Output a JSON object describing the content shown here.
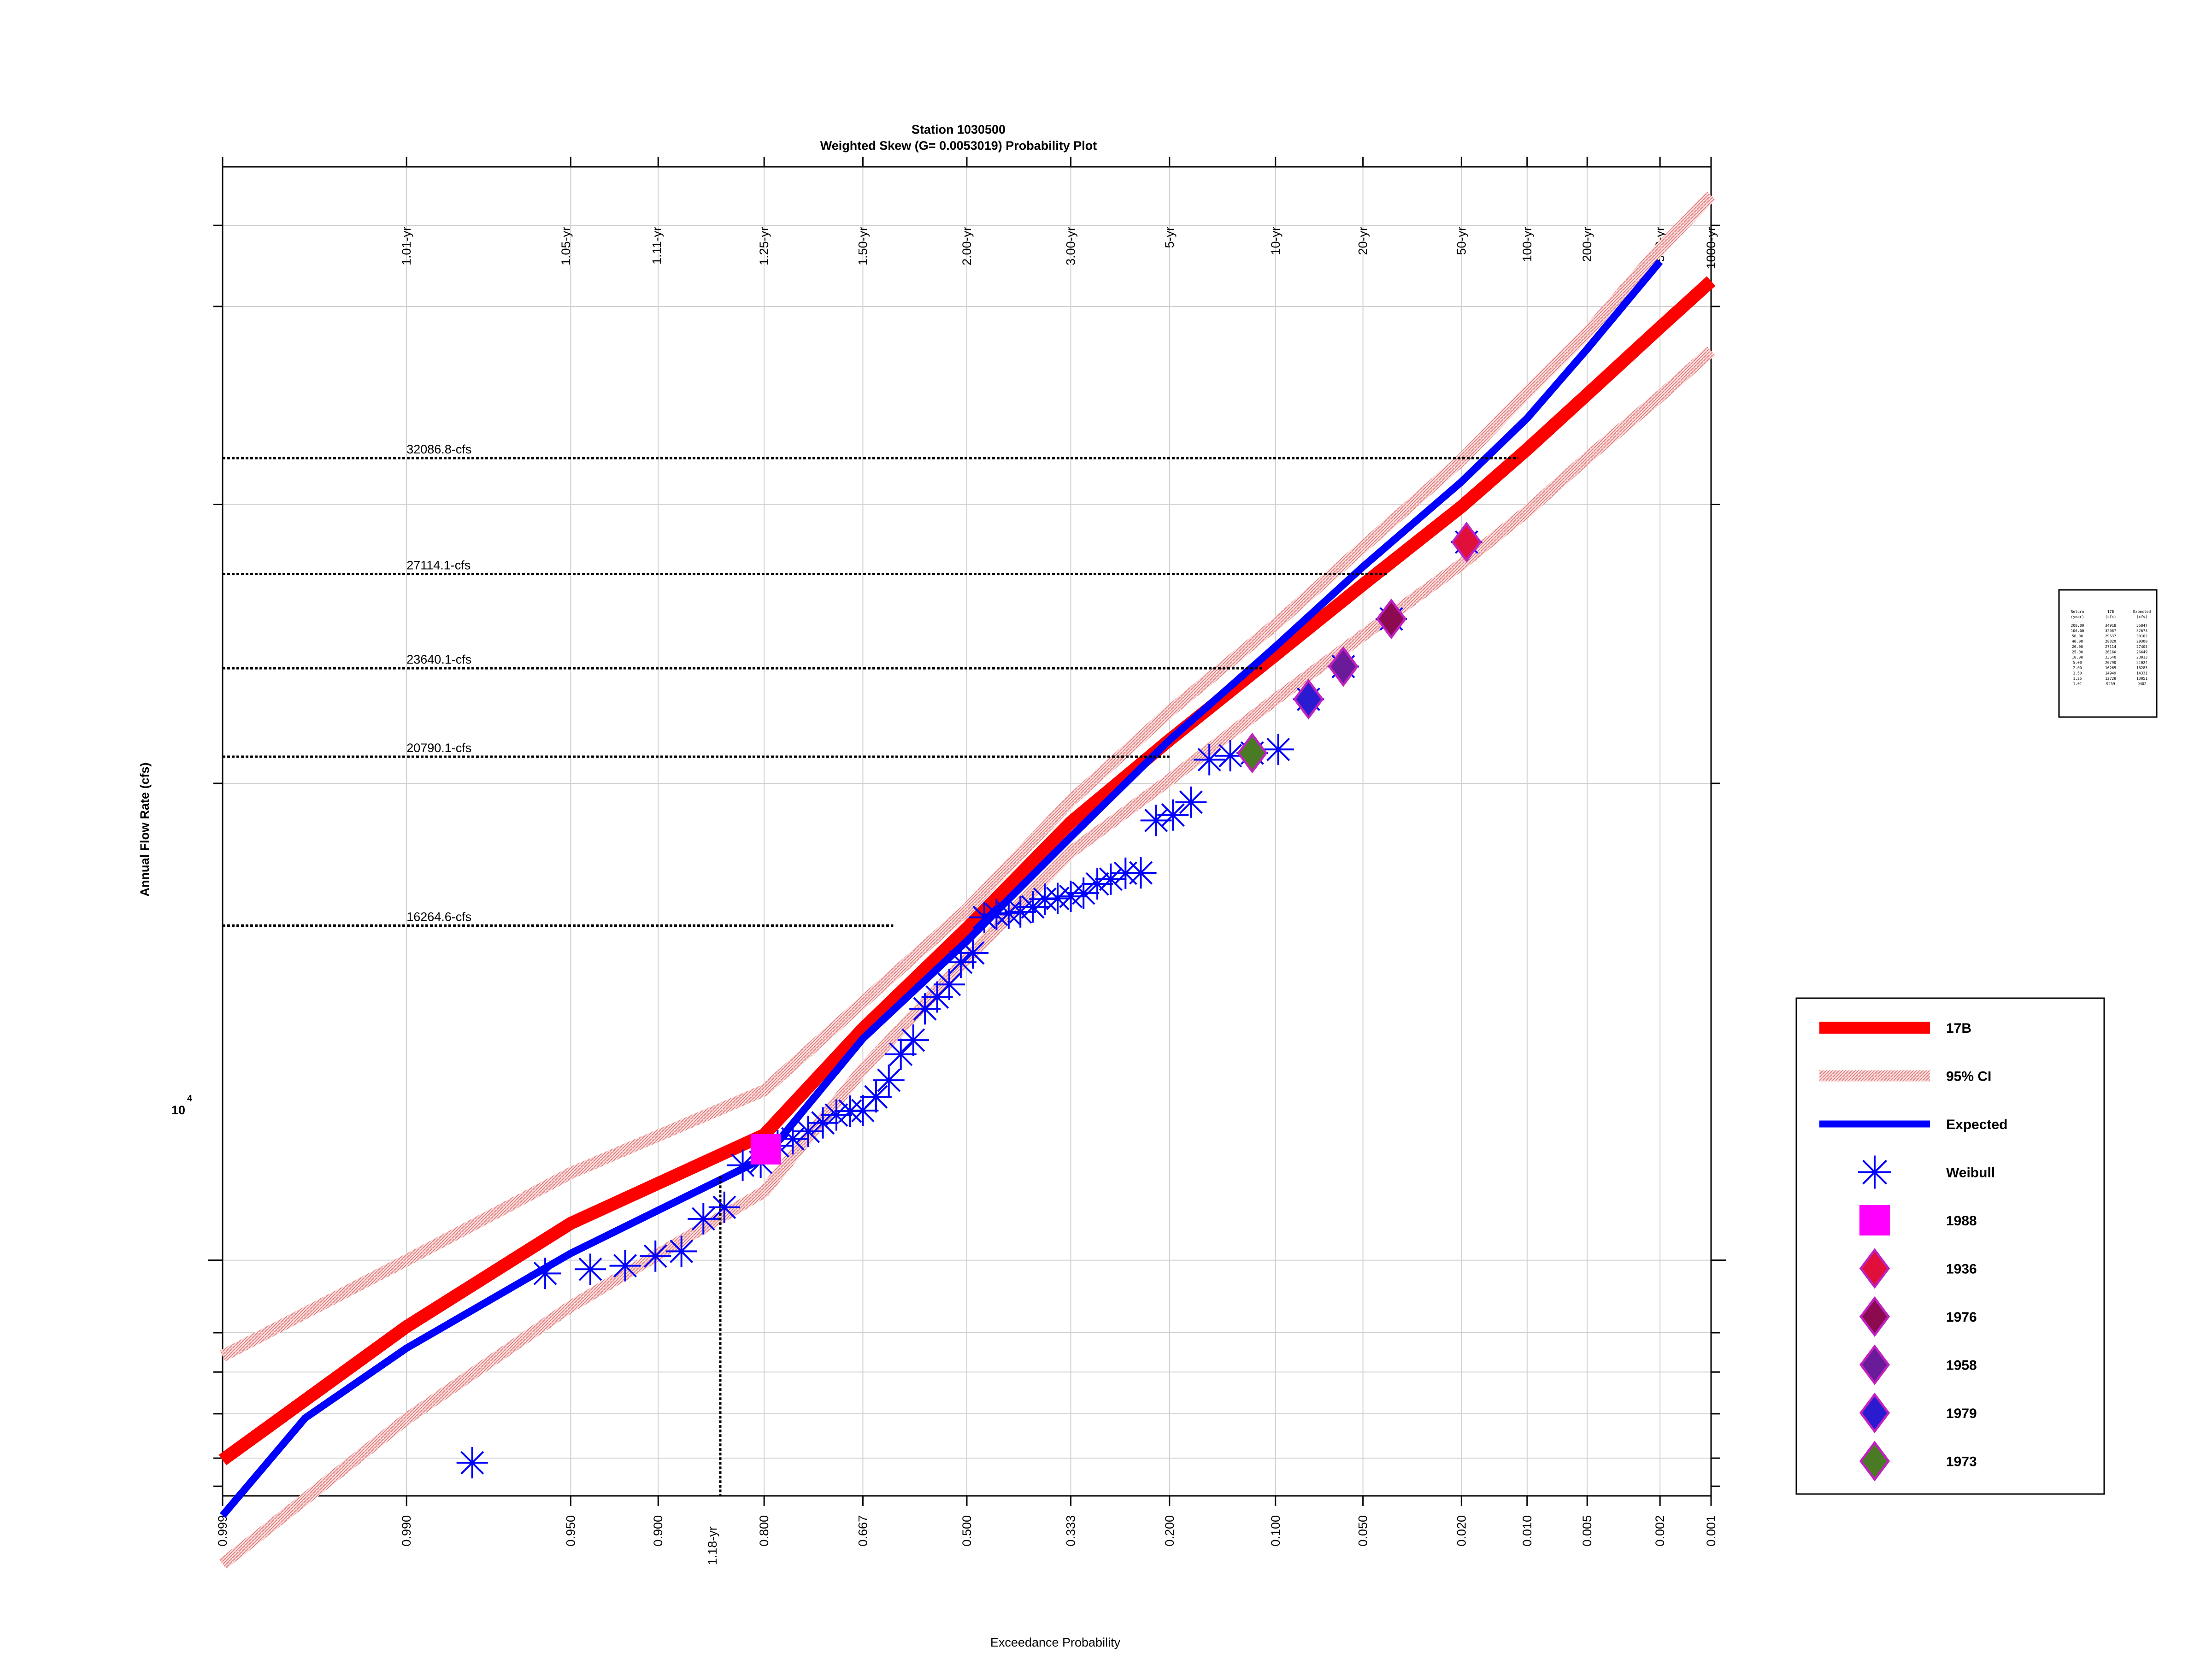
{
  "chart_data": {
    "type": "scatter",
    "title": "Station 1030500",
    "subtitle": "Weighted Skew (G= 0.0053019) Probability Plot",
    "xlabel": "Exceedance Probability",
    "ylabel": "Annual Flow Rate (cfs)",
    "x_scale": "normal-probability",
    "y_scale": "log",
    "xlim": [
      0.999,
      0.001
    ],
    "ylim": [
      7100,
      49000
    ],
    "grid": true,
    "legend_position": "right",
    "x_ticks": [
      {
        "p": 0.999,
        "label": "0.999"
      },
      {
        "p": 0.99,
        "label": "0.990"
      },
      {
        "p": 0.95,
        "label": "0.950"
      },
      {
        "p": 0.9,
        "label": "0.900"
      },
      {
        "p": 0.8,
        "label": "0.800"
      },
      {
        "p": 0.667,
        "label": "0.667"
      },
      {
        "p": 0.5,
        "label": "0.500"
      },
      {
        "p": 0.333,
        "label": "0.333"
      },
      {
        "p": 0.2,
        "label": "0.200"
      },
      {
        "p": 0.1,
        "label": "0.100"
      },
      {
        "p": 0.05,
        "label": "0.050"
      },
      {
        "p": 0.02,
        "label": "0.020"
      },
      {
        "p": 0.01,
        "label": "0.010"
      },
      {
        "p": 0.005,
        "label": "0.005"
      },
      {
        "p": 0.002,
        "label": "0.002"
      },
      {
        "p": 0.001,
        "label": "0.001"
      }
    ],
    "return_period_labels": [
      {
        "p": 0.99,
        "label": "1.01-yr"
      },
      {
        "p": 0.952,
        "label": "1.05-yr"
      },
      {
        "p": 0.901,
        "label": "1.11-yr"
      },
      {
        "p": 0.8,
        "label": "1.25-yr"
      },
      {
        "p": 0.667,
        "label": "1.50-yr"
      },
      {
        "p": 0.5,
        "label": "2.00-yr"
      },
      {
        "p": 0.333,
        "label": "3.00-yr"
      },
      {
        "p": 0.2,
        "label": "5-yr"
      },
      {
        "p": 0.1,
        "label": "10-yr"
      },
      {
        "p": 0.05,
        "label": "20-yr"
      },
      {
        "p": 0.02,
        "label": "50-yr"
      },
      {
        "p": 0.01,
        "label": "100-yr"
      },
      {
        "p": 0.005,
        "label": "200-yr"
      },
      {
        "p": 0.002,
        "label": "500-yr"
      },
      {
        "p": 0.001,
        "label": "1000-yr"
      }
    ],
    "y_tick_label": {
      "base": "10",
      "exp": "4",
      "value": 10000
    },
    "y_minor_ticks": [
      7500,
      8000,
      8500,
      9000,
      20000,
      30000,
      40000,
      50000
    ],
    "reference_lines": [
      {
        "label": "32086.8-cfs",
        "y": 32086.8,
        "p_end": 0.011
      },
      {
        "label": "27114.1-cfs",
        "y": 27114.1,
        "p_end": 0.04
      },
      {
        "label": "23640.1-cfs",
        "y": 23640.1,
        "p_end": 0.11
      },
      {
        "label": "20790.1-cfs",
        "y": 20790.1,
        "p_end": 0.2
      },
      {
        "label": "16264.6-cfs",
        "y": 16264.6,
        "p_end": 0.62
      }
    ],
    "vertical_reference": {
      "label": "1.18-yr",
      "p": 0.847,
      "y": 11300
    },
    "series": [
      {
        "name": "17B",
        "kind": "line",
        "color": "#ff0000",
        "points": [
          [
            0.999,
            7480
          ],
          [
            0.99,
            9080
          ],
          [
            0.95,
            10550
          ],
          [
            0.8,
            12000
          ],
          [
            0.667,
            14000
          ],
          [
            0.5,
            16200
          ],
          [
            0.333,
            18900
          ],
          [
            0.2,
            21300
          ],
          [
            0.1,
            24100
          ],
          [
            0.05,
            26700
          ],
          [
            0.02,
            29900
          ],
          [
            0.01,
            32500
          ],
          [
            0.005,
            35200
          ],
          [
            0.002,
            38800
          ],
          [
            0.001,
            41500
          ]
        ]
      },
      {
        "name": "95% CI",
        "kind": "band",
        "color": "#f0a0a0",
        "upper": [
          [
            0.999,
            8700
          ],
          [
            0.99,
            10000
          ],
          [
            0.95,
            11350
          ],
          [
            0.8,
            12800
          ],
          [
            0.667,
            14550
          ],
          [
            0.5,
            16650
          ],
          [
            0.333,
            19500
          ],
          [
            0.2,
            22200
          ],
          [
            0.1,
            25200
          ],
          [
            0.05,
            28200
          ],
          [
            0.02,
            32000
          ],
          [
            0.01,
            35300
          ],
          [
            0.005,
            38500
          ],
          [
            0.002,
            43500
          ],
          [
            0.001,
            47000
          ]
        ],
        "lower": [
          [
            0.999,
            6430
          ],
          [
            0.99,
            7940
          ],
          [
            0.95,
            9350
          ],
          [
            0.8,
            11050
          ],
          [
            0.667,
            13200
          ],
          [
            0.5,
            15500
          ],
          [
            0.333,
            18100
          ],
          [
            0.2,
            20100
          ],
          [
            0.1,
            22600
          ],
          [
            0.05,
            24800
          ],
          [
            0.02,
            27500
          ],
          [
            0.01,
            29700
          ],
          [
            0.005,
            32100
          ],
          [
            0.002,
            35100
          ],
          [
            0.001,
            37500
          ]
        ]
      },
      {
        "name": "Expected",
        "kind": "line",
        "color": "#0000ff",
        "points": [
          [
            0.999,
            6900
          ],
          [
            0.997,
            7950
          ],
          [
            0.99,
            8800
          ],
          [
            0.95,
            10100
          ],
          [
            0.8,
            11600
          ],
          [
            0.667,
            13800
          ],
          [
            0.5,
            15900
          ],
          [
            0.333,
            18500
          ],
          [
            0.2,
            21300
          ],
          [
            0.1,
            24400
          ],
          [
            0.05,
            27400
          ],
          [
            0.02,
            31000
          ],
          [
            0.01,
            34000
          ],
          [
            0.005,
            37600
          ],
          [
            0.002,
            42700
          ]
        ]
      },
      {
        "name": "Weibull",
        "kind": "scatter",
        "color": "#0000ff",
        "points": [
          [
            0.98,
            7450
          ],
          [
            0.96,
            9810
          ],
          [
            0.941,
            9870
          ],
          [
            0.922,
            9920
          ],
          [
            0.902,
            10060
          ],
          [
            0.882,
            10130
          ],
          [
            0.863,
            10620
          ],
          [
            0.843,
            10800
          ],
          [
            0.824,
            11480
          ],
          [
            0.804,
            11530
          ],
          [
            0.784,
            11810
          ],
          [
            0.765,
            11930
          ],
          [
            0.745,
            12060
          ],
          [
            0.725,
            12210
          ],
          [
            0.706,
            12350
          ],
          [
            0.686,
            12420
          ],
          [
            0.667,
            12430
          ],
          [
            0.647,
            12680
          ],
          [
            0.627,
            12990
          ],
          [
            0.608,
            13490
          ],
          [
            0.588,
            13770
          ],
          [
            0.569,
            14410
          ],
          [
            0.549,
            14660
          ],
          [
            0.529,
            14930
          ],
          [
            0.51,
            15420
          ],
          [
            0.49,
            15630
          ],
          [
            0.471,
            16460
          ],
          [
            0.451,
            16530
          ],
          [
            0.431,
            16560
          ],
          [
            0.412,
            16590
          ],
          [
            0.392,
            16710
          ],
          [
            0.373,
            16900
          ],
          [
            0.353,
            16920
          ],
          [
            0.333,
            16970
          ],
          [
            0.314,
            17050
          ],
          [
            0.294,
            17280
          ],
          [
            0.275,
            17400
          ],
          [
            0.255,
            17550
          ],
          [
            0.235,
            17560
          ],
          [
            0.216,
            18950
          ],
          [
            0.196,
            19100
          ],
          [
            0.176,
            19460
          ],
          [
            0.157,
            20700
          ],
          [
            0.137,
            20820
          ],
          [
            0.118,
            20900
          ],
          [
            0.098,
            21010
          ],
          [
            0.078,
            22600
          ],
          [
            0.059,
            23700
          ],
          [
            0.039,
            25400
          ],
          [
            0.019,
            28400
          ]
        ]
      },
      {
        "name": "1988",
        "kind": "marker",
        "shape": "square",
        "color": "#ff00ff",
        "points": [
          [
            0.798,
            11750
          ]
        ]
      },
      {
        "name": "1936",
        "kind": "marker",
        "shape": "diamond",
        "color": "#e0103a",
        "points": [
          [
            0.019,
            28400
          ]
        ]
      },
      {
        "name": "1976",
        "kind": "marker",
        "shape": "diamond",
        "color": "#8b0a50",
        "points": [
          [
            0.039,
            25400
          ]
        ]
      },
      {
        "name": "1958",
        "kind": "marker",
        "shape": "diamond",
        "color": "#6a1b9a",
        "points": [
          [
            0.059,
            23700
          ]
        ]
      },
      {
        "name": "1979",
        "kind": "marker",
        "shape": "diamond",
        "color": "#2b1bd0",
        "points": [
          [
            0.078,
            22600
          ]
        ]
      },
      {
        "name": "1973",
        "kind": "marker",
        "shape": "diamond",
        "color": "#4b7a25",
        "points": [
          [
            0.118,
            20900
          ]
        ]
      }
    ],
    "legend": [
      {
        "label": "17B",
        "kind": "thick-line",
        "color": "#ff0000"
      },
      {
        "label": "95% CI",
        "kind": "hatched-line",
        "color": "#f0a0a0"
      },
      {
        "label": "Expected",
        "kind": "line",
        "color": "#0000ff"
      },
      {
        "label": "Weibull",
        "kind": "star",
        "color": "#0000ff"
      },
      {
        "label": "1988",
        "kind": "square",
        "color": "#ff00ff"
      },
      {
        "label": "1936",
        "kind": "diamond",
        "color": "#e0103a"
      },
      {
        "label": "1976",
        "kind": "diamond",
        "color": "#8b0a50"
      },
      {
        "label": "1958",
        "kind": "diamond",
        "color": "#6a1b9a"
      },
      {
        "label": "1979",
        "kind": "diamond",
        "color": "#2b1bd0"
      },
      {
        "label": "1973",
        "kind": "diamond",
        "color": "#4b7a25"
      }
    ],
    "summary_table": {
      "headers": [
        "Return (year)",
        "17B (cfs)",
        "Expected (cfs)"
      ],
      "rows": [
        [
          "200.00",
          "34918",
          "35847"
        ],
        [
          "100.00",
          "32087",
          "32673"
        ],
        [
          "50.00",
          "29637",
          "30102"
        ],
        [
          "40.00",
          "28829",
          "29300"
        ],
        [
          "20.00",
          "27114",
          "27405"
        ],
        [
          "25.00",
          "26160",
          "26649"
        ],
        [
          "10.00",
          "23640",
          "23913"
        ],
        [
          "5.00",
          "20790",
          "21024"
        ],
        [
          "2.00",
          "16265",
          "16285"
        ],
        [
          "1.50",
          "14949",
          "14331"
        ],
        [
          "1.25",
          "12729",
          "13051"
        ],
        [
          "1.01",
          "9259",
          "9402"
        ]
      ]
    }
  }
}
